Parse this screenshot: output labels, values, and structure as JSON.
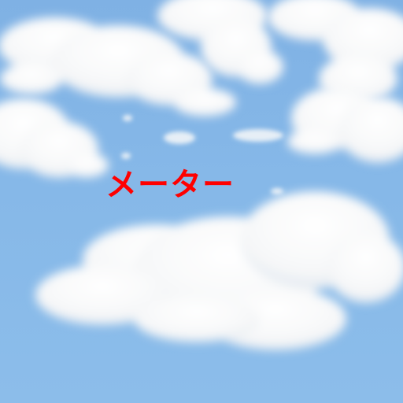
{
  "photo": {
    "subject": "clouds-sky",
    "sky_color": "#86b8e8",
    "cloud_color": "#ffffff",
    "cloud_shadow": "#dbe4ee"
  },
  "caption": {
    "text": "メーター",
    "color": "#ff0000"
  }
}
